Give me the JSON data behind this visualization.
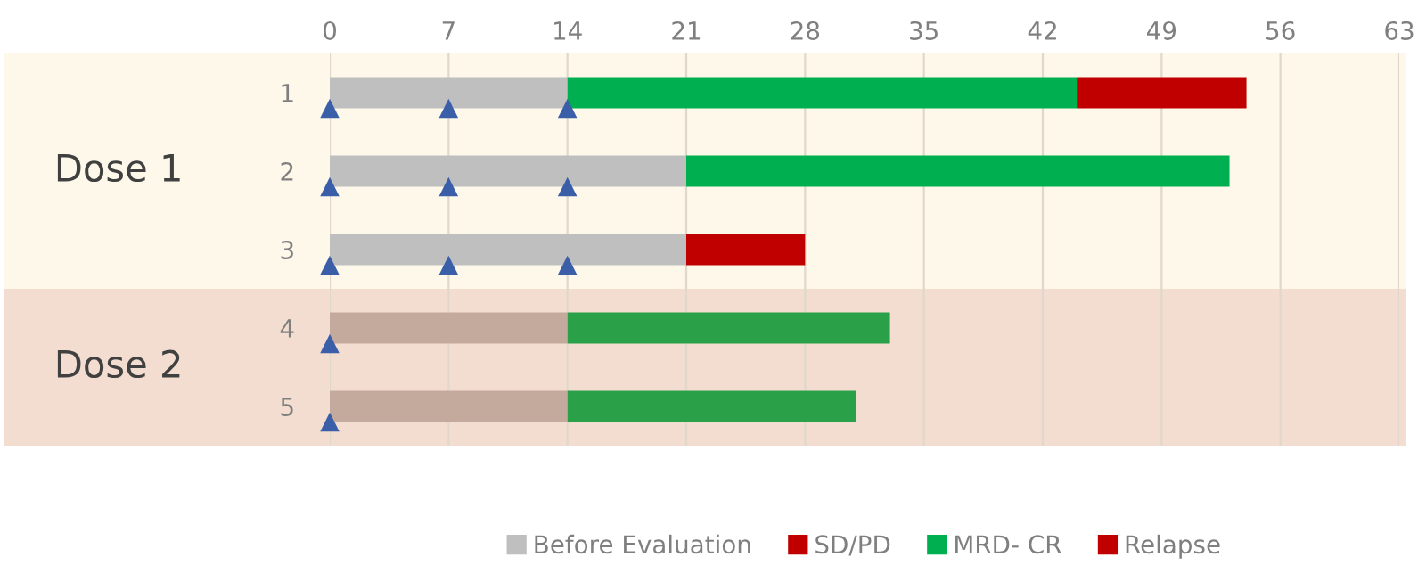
{
  "chart_data": {
    "type": "bar",
    "orientation": "horizontal",
    "stacked": true,
    "categories": [
      "1",
      "2",
      "3",
      "4",
      "5"
    ],
    "series": [
      {
        "name": "Before Evaluation",
        "color": "#bfbfbf",
        "colors": [
          "#bfbfbf",
          "#bfbfbf",
          "#bfbfbf",
          "#c4aa9c",
          "#c4aa9c"
        ],
        "values": [
          14,
          21,
          21,
          14,
          14
        ]
      },
      {
        "name": "SD/PD",
        "color": "#c00000",
        "values": [
          null,
          null,
          7,
          null,
          null
        ]
      },
      {
        "name": "MRD- CR",
        "color": "#00b050",
        "colors": [
          "#00b050",
          "#00b050",
          "#00b050",
          "#2aa048",
          "#2aa048"
        ],
        "values": [
          30,
          32,
          null,
          19,
          17
        ]
      },
      {
        "name": "Relapse",
        "color": "#c00000",
        "values": [
          10,
          null,
          null,
          null,
          null
        ]
      },
      {
        "type": "scatter",
        "marker": "triangle",
        "color": "#3a5fa8",
        "x": [
          "1",
          "1",
          "1",
          "2",
          "2",
          "2",
          "3",
          "3",
          "3",
          "4",
          "5"
        ],
        "values": [
          0,
          7,
          14,
          0,
          7,
          14,
          0,
          7,
          14,
          0,
          0
        ]
      }
    ],
    "xlim": [
      0,
      63
    ],
    "xticks": [
      0,
      7,
      14,
      21,
      28,
      35,
      42,
      49,
      56,
      63
    ],
    "grid": "x",
    "legend": "bottom",
    "bands": [
      {
        "axis": "y",
        "from": "1",
        "to": "3",
        "label": "Dose 1",
        "color": "#fdf8ea"
      },
      {
        "axis": "y",
        "from": "4",
        "to": "5",
        "label": "Dose 2",
        "color": "#f2ddd0"
      }
    ]
  }
}
